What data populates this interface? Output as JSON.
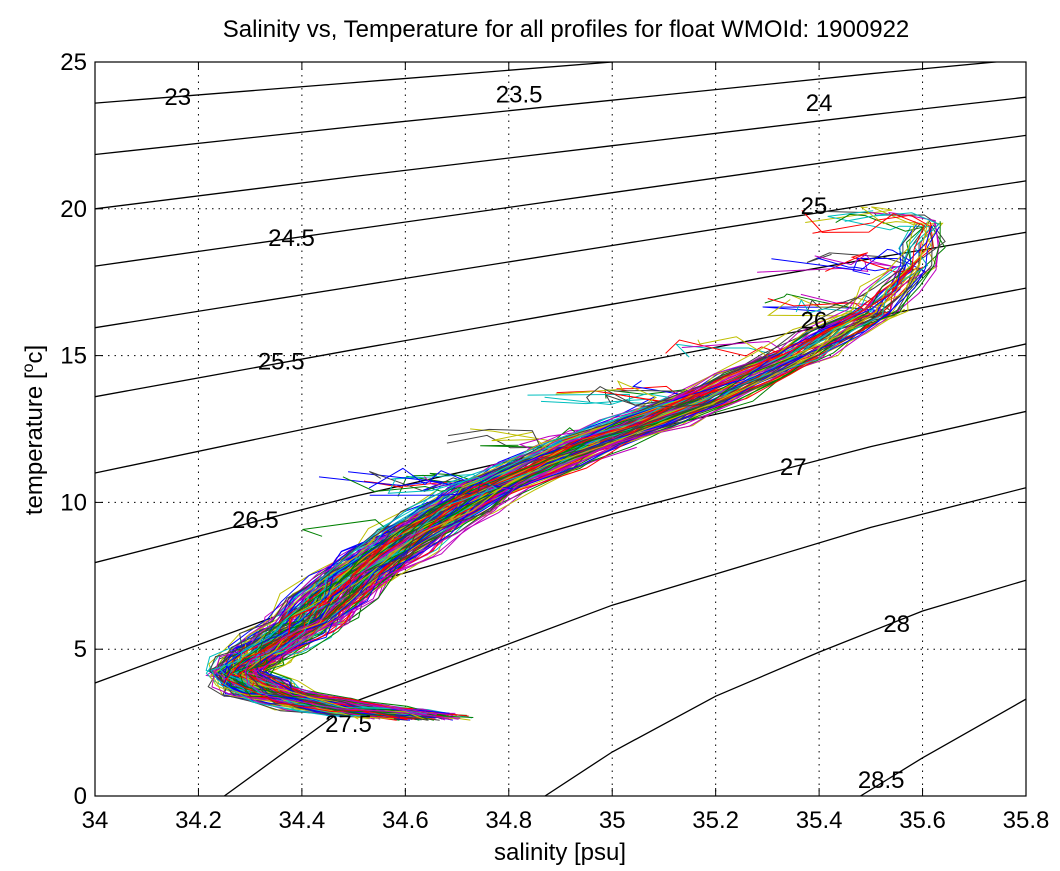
{
  "chart_data": {
    "type": "line",
    "title": "Salinity vs, Temperature for all profiles for float WMOId: 1900922",
    "xlabel": "salinity [psu]",
    "ylabel_parts": [
      "temperature [",
      "o",
      "c]"
    ],
    "xlim": [
      34,
      35.8
    ],
    "ylim": [
      0,
      25
    ],
    "xticks": [
      34,
      34.2,
      34.4,
      34.6,
      34.8,
      35,
      35.2,
      35.4,
      35.6,
      35.8
    ],
    "xtick_labels": [
      "34",
      "34.2",
      "34.4",
      "34.6",
      "34.8",
      "35",
      "35.2",
      "35.4",
      "35.6",
      "35.8"
    ],
    "yticks": [
      0,
      5,
      10,
      15,
      20,
      25
    ],
    "ytick_labels": [
      "0",
      "5",
      "10",
      "15",
      "20",
      "25"
    ],
    "grid": true,
    "density_contours": [
      {
        "label": "23",
        "points": [
          [
            34.0,
            23.6
          ],
          [
            34.5,
            24.3
          ],
          [
            35.0,
            25.0
          ]
        ],
        "label_at": [
          34.16,
          23.8
        ]
      },
      {
        "label": "23.5",
        "points": [
          [
            34.0,
            21.85
          ],
          [
            34.5,
            22.8
          ],
          [
            35.0,
            23.7
          ],
          [
            35.5,
            24.6
          ],
          [
            35.8,
            25.1
          ]
        ],
        "label_at": [
          34.82,
          23.9
        ]
      },
      {
        "label": "24",
        "points": [
          [
            34.0,
            20.0
          ],
          [
            34.5,
            21.1
          ],
          [
            35.0,
            22.15
          ],
          [
            35.5,
            23.2
          ],
          [
            35.8,
            23.8
          ]
        ],
        "label_at": [
          35.4,
          23.6
        ]
      },
      {
        "label": "",
        "points": [
          [
            34.0,
            18.05
          ],
          [
            34.5,
            19.3
          ],
          [
            35.0,
            20.55
          ],
          [
            35.5,
            21.8
          ],
          [
            35.8,
            22.5
          ]
        ]
      },
      {
        "label": "24.5",
        "points": [
          [
            34.0,
            18.05
          ]
        ],
        "label_only": true,
        "label_at": [
          34.38,
          19.0
        ]
      },
      {
        "label": "25",
        "points": [
          [
            34.0,
            15.95
          ],
          [
            34.5,
            17.35
          ],
          [
            35.0,
            18.75
          ],
          [
            35.5,
            20.15
          ],
          [
            35.8,
            20.95
          ]
        ],
        "label_at": [
          35.39,
          20.1
        ]
      },
      {
        "label": "25.5",
        "points": [
          [
            34.0,
            13.6
          ],
          [
            34.5,
            15.2
          ],
          [
            35.0,
            16.75
          ],
          [
            35.5,
            18.3
          ],
          [
            35.8,
            19.2
          ]
        ],
        "label_at": [
          34.36,
          14.8
        ]
      },
      {
        "label": "26",
        "points": [
          [
            34.0,
            11.0
          ],
          [
            34.5,
            12.85
          ],
          [
            35.0,
            14.6
          ],
          [
            35.5,
            16.3
          ],
          [
            35.8,
            17.3
          ]
        ],
        "label_at": [
          35.39,
          16.2
        ]
      },
      {
        "label": "",
        "points": [
          [
            34.0,
            7.95
          ],
          [
            34.5,
            10.2
          ],
          [
            35.0,
            12.2
          ],
          [
            35.5,
            14.2
          ],
          [
            35.8,
            15.4
          ]
        ]
      },
      {
        "label": "26.5",
        "points": [
          [
            34.0,
            7.95
          ]
        ],
        "label_only": true,
        "label_at": [
          34.31,
          9.4
        ]
      },
      {
        "label": "27",
        "points": [
          [
            34.0,
            3.85
          ],
          [
            34.5,
            7.1
          ],
          [
            35.0,
            9.6
          ],
          [
            35.5,
            11.9
          ],
          [
            35.8,
            13.1
          ]
        ],
        "label_at": [
          35.35,
          11.2
        ]
      },
      {
        "label": "27.5",
        "points": [
          [
            34.25,
            0.0
          ],
          [
            34.5,
            3.2
          ],
          [
            35.0,
            6.5
          ],
          [
            35.5,
            9.15
          ],
          [
            35.8,
            10.5
          ]
        ],
        "label_at": [
          34.49,
          2.45
        ]
      },
      {
        "label": "28",
        "points": [
          [
            34.87,
            0.0
          ],
          [
            35.0,
            1.5
          ],
          [
            35.2,
            3.4
          ],
          [
            35.4,
            4.9
          ],
          [
            35.6,
            6.3
          ],
          [
            35.8,
            7.35
          ]
        ],
        "label_at": [
          35.55,
          5.85
        ]
      },
      {
        "label": "28.5",
        "points": [
          [
            35.48,
            0.0
          ],
          [
            35.6,
            1.3
          ],
          [
            35.8,
            3.3
          ]
        ],
        "label_at": [
          35.52,
          0.55
        ]
      }
    ],
    "profile_colors": [
      "#0000ff",
      "#008000",
      "#ff0000",
      "#00bfbf",
      "#bf00bf",
      "#bfbf00",
      "#404040"
    ],
    "profile_count": 180,
    "profile_envelope": [
      {
        "T": 2.7,
        "S_mid": 34.62,
        "S_spread": 0.12
      },
      {
        "T": 3.0,
        "S_mid": 34.47,
        "S_spread": 0.14
      },
      {
        "T": 3.5,
        "S_mid": 34.33,
        "S_spread": 0.1
      },
      {
        "T": 4.2,
        "S_mid": 34.27,
        "S_spread": 0.07
      },
      {
        "T": 5.0,
        "S_mid": 34.33,
        "S_spread": 0.08
      },
      {
        "T": 6.0,
        "S_mid": 34.41,
        "S_spread": 0.1
      },
      {
        "T": 7.5,
        "S_mid": 34.5,
        "S_spread": 0.1
      },
      {
        "T": 9.0,
        "S_mid": 34.62,
        "S_spread": 0.1
      },
      {
        "T": 10.5,
        "S_mid": 34.76,
        "S_spread": 0.1
      },
      {
        "T": 12.0,
        "S_mid": 34.95,
        "S_spread": 0.1
      },
      {
        "T": 13.5,
        "S_mid": 35.17,
        "S_spread": 0.1
      },
      {
        "T": 15.0,
        "S_mid": 35.35,
        "S_spread": 0.09
      },
      {
        "T": 16.5,
        "S_mid": 35.5,
        "S_spread": 0.07
      },
      {
        "T": 18.0,
        "S_mid": 35.58,
        "S_spread": 0.05
      },
      {
        "T": 19.5,
        "S_mid": 35.61,
        "S_spread": 0.04
      }
    ]
  }
}
